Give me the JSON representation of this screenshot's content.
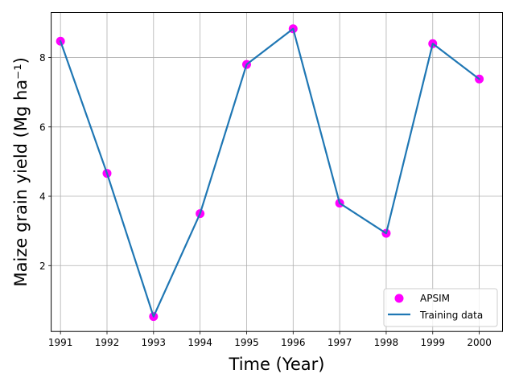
{
  "chart_data": {
    "type": "line",
    "xlabel": "Time (Year)",
    "ylabel": "Maize grain yield (Mg ha⁻¹)",
    "categories": [
      "1991",
      "1992",
      "1993",
      "1994",
      "1995",
      "1996",
      "1997",
      "1998",
      "1999",
      "2000"
    ],
    "xlim": [
      1990.8,
      2000.5
    ],
    "ylim": [
      0.1,
      9.3
    ],
    "x_ticks": [
      1991,
      1992,
      1993,
      1994,
      1995,
      1996,
      1997,
      1998,
      1999,
      2000
    ],
    "y_ticks": [
      2,
      4,
      6,
      8
    ],
    "grid": true,
    "legend_position": "lower-right",
    "series": [
      {
        "name": "APSIM",
        "kind": "scatter",
        "color": "#ff00ff",
        "x": [
          1991,
          1992,
          1993,
          1994,
          1995,
          1996,
          1997,
          1998,
          1999,
          2000
        ],
        "values": [
          8.47,
          4.66,
          0.53,
          3.5,
          7.8,
          8.83,
          3.8,
          2.93,
          8.4,
          7.38
        ]
      },
      {
        "name": "Training data",
        "kind": "line",
        "color": "#1f77b4",
        "x": [
          1991,
          1992,
          1993,
          1994,
          1995,
          1996,
          1997,
          1998,
          1999,
          2000
        ],
        "values": [
          8.47,
          4.66,
          0.53,
          3.5,
          7.8,
          8.83,
          3.8,
          2.93,
          8.4,
          7.38
        ]
      }
    ]
  }
}
